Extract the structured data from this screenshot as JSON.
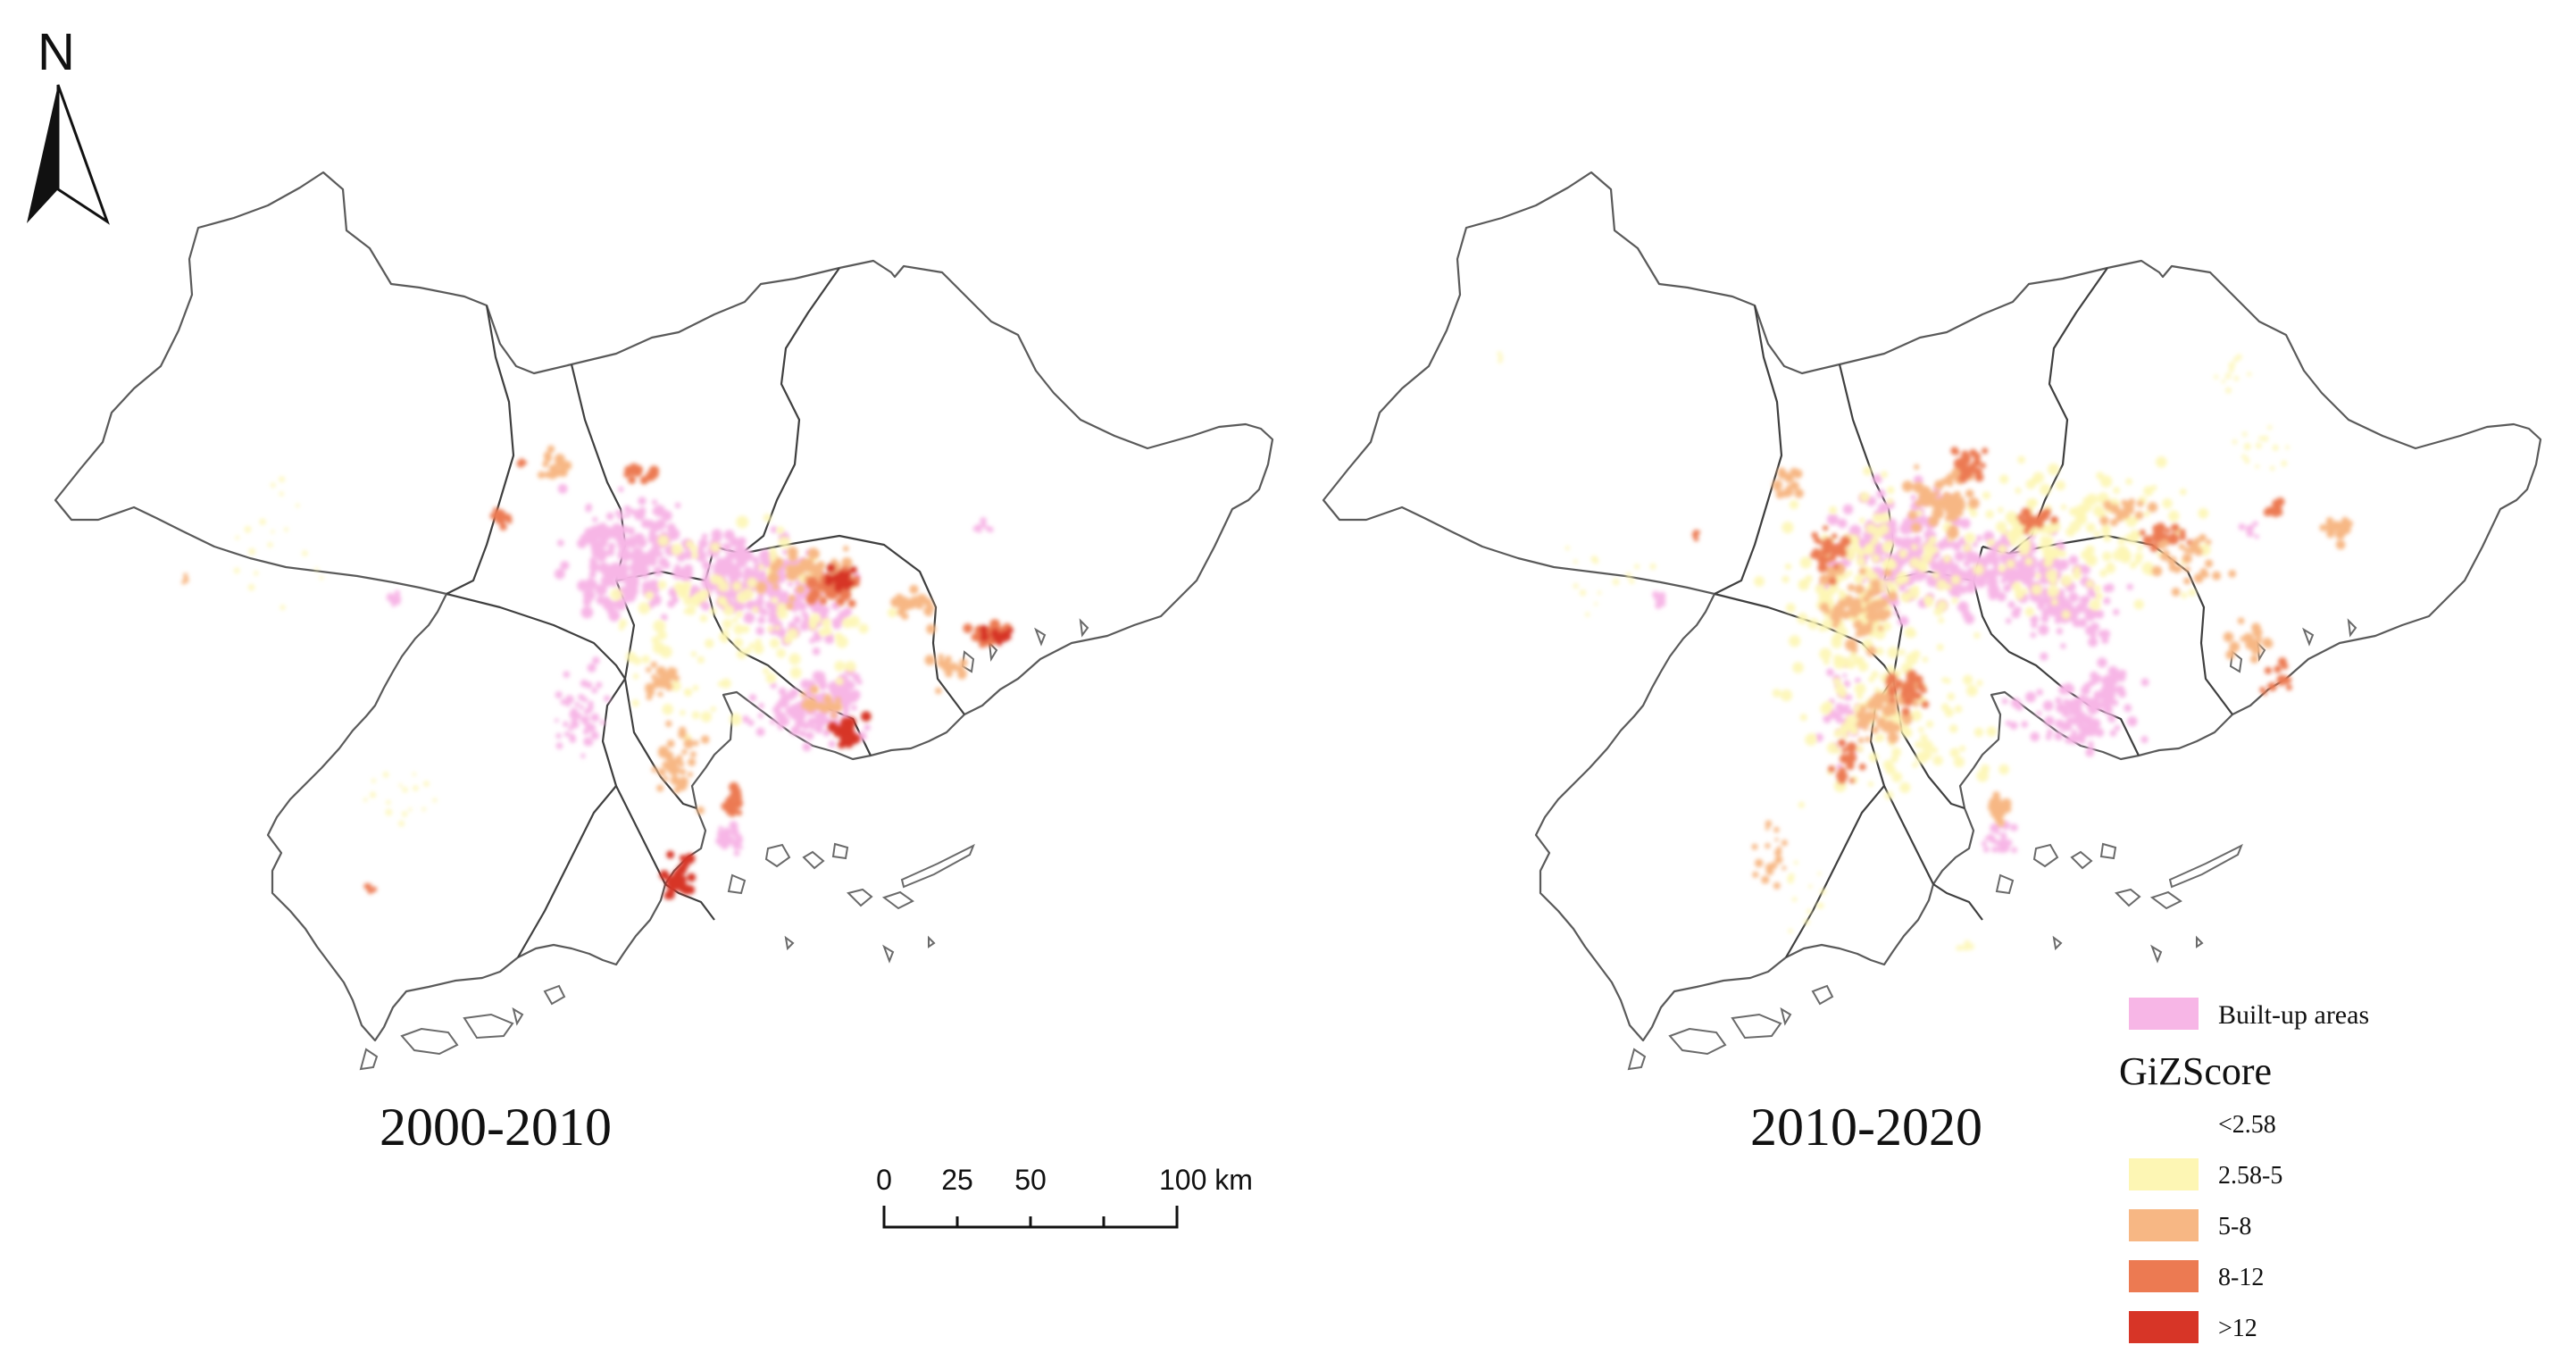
{
  "maps": [
    {
      "id": "left",
      "period_label": "2000-2010"
    },
    {
      "id": "right",
      "period_label": "2010-2020"
    }
  ],
  "north_arrow": {
    "label": "N"
  },
  "scale_bar": {
    "ticks": [
      "0",
      "25",
      "50",
      "100 km"
    ]
  },
  "legend": {
    "builtup": {
      "label": "Built-up areas",
      "color": "#f7b6e6"
    },
    "title": "GiZScore",
    "classes": [
      {
        "label": "<2.58",
        "color": "#ffffff"
      },
      {
        "label": "2.58-5",
        "color": "#fdf6b4"
      },
      {
        "label": "5-8",
        "color": "#f7b784"
      },
      {
        "label": "8-12",
        "color": "#ec7a52"
      },
      {
        "label": ">12",
        "color": "#d73527"
      }
    ]
  }
}
